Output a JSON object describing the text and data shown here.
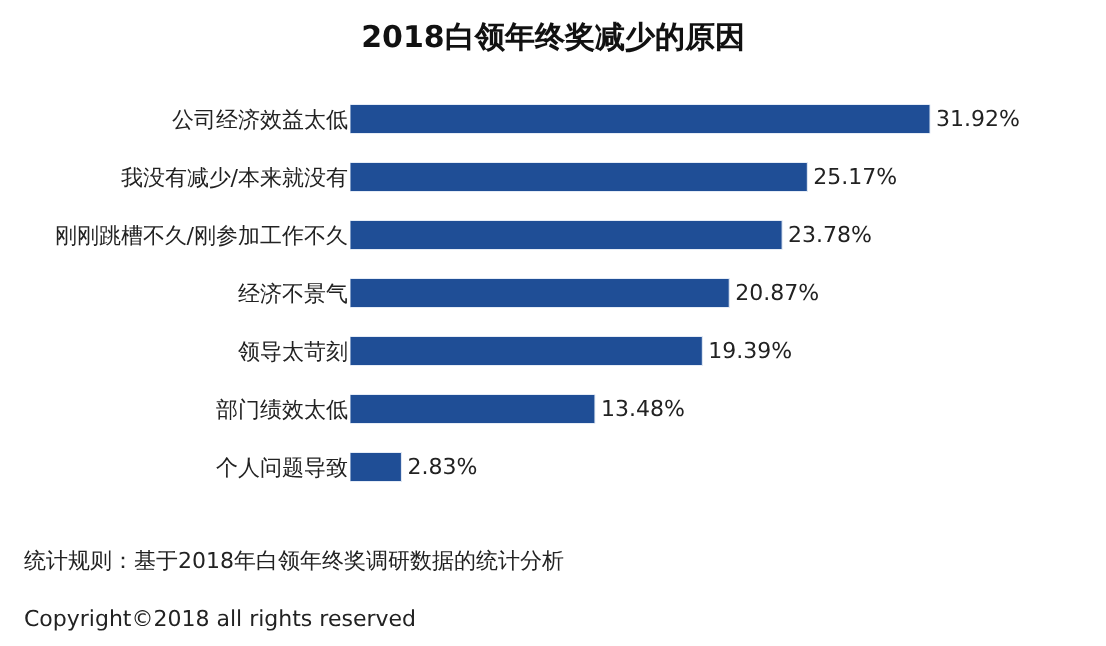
{
  "chart_data": {
    "type": "bar",
    "orientation": "horizontal",
    "title": "2018白领年终奖减少的原因",
    "categories": [
      "公司经济效益太低",
      "我没有减少/本来就没有",
      "刚刚跳槽不久/刚参加工作不久",
      "经济不景气",
      "领导太苛刻",
      "部门绩效太低",
      "个人问题导致"
    ],
    "values": [
      31.92,
      25.17,
      23.78,
      20.87,
      19.39,
      13.48,
      2.83
    ],
    "value_labels": [
      "31.92%",
      "25.17%",
      "23.78%",
      "20.87%",
      "19.39%",
      "13.48%",
      "2.83%"
    ],
    "color": "#1f4e96",
    "annotations": [
      "统计规则：基于2018年白领年终奖调研数据的统计分析",
      "Copyright©2018 all rights reserved"
    ]
  }
}
